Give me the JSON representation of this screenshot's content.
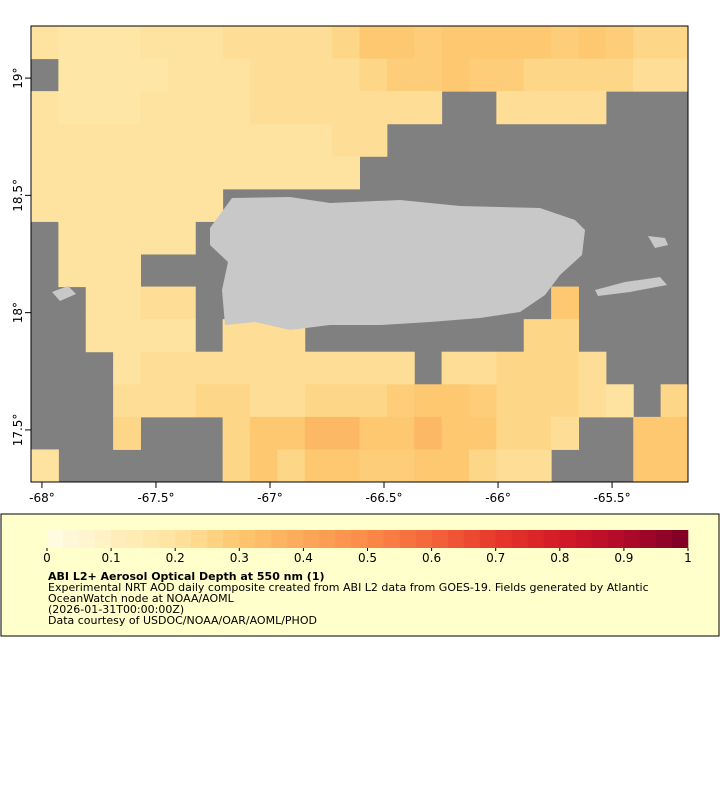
{
  "map": {
    "lon_range": [
      -68.048,
      -65.167
    ],
    "lat_range": [
      17.278,
      19.222
    ],
    "xticks": [
      {
        "value": -68,
        "label": "-68°"
      },
      {
        "value": -67.5,
        "label": "-67.5°"
      },
      {
        "value": -67,
        "label": "-67°"
      },
      {
        "value": -66.5,
        "label": "-66.5°"
      },
      {
        "value": -66,
        "label": "-66°"
      },
      {
        "value": -65.5,
        "label": "-65.5°"
      }
    ],
    "yticks": [
      {
        "value": 17.5,
        "label": "17.5°"
      },
      {
        "value": 18,
        "label": "18°"
      },
      {
        "value": 18.5,
        "label": "18.5°"
      },
      {
        "value": 19,
        "label": "19°"
      }
    ],
    "aod": {
      "values": [
        [
          0.2,
          0.18,
          0.18,
          0.18,
          0.2,
          0.2,
          0.2,
          0.22,
          0.22,
          0.22,
          0.22,
          0.25,
          0.3,
          0.3,
          0.28,
          0.3,
          0.3,
          0.3,
          0.3,
          0.28,
          0.3,
          0.28,
          0.25,
          0.25
        ],
        [
          null,
          0.18,
          0.18,
          0.18,
          0.18,
          0.2,
          0.2,
          0.2,
          0.22,
          0.22,
          0.22,
          0.22,
          0.25,
          0.28,
          0.28,
          0.3,
          0.28,
          0.28,
          0.25,
          0.25,
          0.25,
          0.25,
          0.22,
          0.22
        ],
        [
          0.2,
          0.18,
          0.18,
          0.18,
          0.2,
          0.2,
          0.2,
          0.2,
          0.22,
          0.22,
          0.22,
          0.22,
          0.22,
          0.22,
          0.22,
          null,
          null,
          0.22,
          0.22,
          0.22,
          0.22,
          null,
          null,
          null
        ],
        [
          0.2,
          0.2,
          0.2,
          0.2,
          0.2,
          0.2,
          0.2,
          0.2,
          0.2,
          0.2,
          0.2,
          0.22,
          0.22,
          null,
          null,
          null,
          null,
          null,
          null,
          null,
          null,
          null,
          null,
          null
        ],
        [
          0.2,
          0.2,
          0.2,
          0.2,
          0.2,
          0.2,
          0.2,
          0.2,
          0.2,
          0.2,
          0.2,
          0.2,
          null,
          null,
          null,
          null,
          null,
          null,
          null,
          null,
          null,
          null,
          null,
          null
        ],
        [
          0.2,
          0.2,
          0.2,
          0.2,
          0.2,
          0.2,
          0.2,
          null,
          null,
          null,
          null,
          null,
          null,
          null,
          null,
          null,
          null,
          null,
          null,
          null,
          null,
          null,
          null,
          null
        ],
        [
          null,
          0.2,
          0.2,
          0.2,
          0.2,
          0.2,
          null,
          null,
          null,
          null,
          null,
          null,
          null,
          null,
          null,
          null,
          null,
          null,
          null,
          null,
          null,
          null,
          null,
          null
        ],
        [
          null,
          0.2,
          0.2,
          0.2,
          null,
          null,
          null,
          null,
          null,
          null,
          null,
          null,
          null,
          null,
          null,
          null,
          null,
          null,
          null,
          null,
          null,
          null,
          null,
          null
        ],
        [
          null,
          null,
          0.2,
          0.2,
          0.22,
          0.22,
          null,
          null,
          null,
          null,
          null,
          null,
          null,
          null,
          null,
          null,
          null,
          null,
          null,
          0.3,
          null,
          null,
          null,
          null
        ],
        [
          null,
          null,
          0.2,
          0.2,
          0.2,
          0.2,
          null,
          0.22,
          0.22,
          0.22,
          null,
          null,
          null,
          null,
          null,
          null,
          null,
          null,
          0.25,
          0.25,
          null,
          null,
          null,
          null
        ],
        [
          null,
          null,
          null,
          0.2,
          0.22,
          0.22,
          0.22,
          0.22,
          0.22,
          0.22,
          0.22,
          0.22,
          0.22,
          0.22,
          null,
          0.22,
          0.22,
          0.25,
          0.25,
          0.25,
          0.22,
          null,
          null,
          null
        ],
        [
          null,
          null,
          null,
          0.22,
          0.22,
          0.22,
          0.25,
          0.25,
          0.22,
          0.22,
          0.25,
          0.25,
          0.25,
          0.28,
          0.3,
          0.3,
          0.28,
          0.25,
          0.25,
          0.25,
          0.22,
          0.2,
          null,
          0.25
        ],
        [
          null,
          null,
          null,
          0.25,
          null,
          null,
          null,
          0.25,
          0.3,
          0.3,
          0.35,
          0.35,
          0.3,
          0.3,
          0.35,
          0.3,
          0.3,
          0.25,
          0.25,
          0.22,
          null,
          null,
          0.3,
          0.3
        ],
        [
          0.2,
          null,
          null,
          null,
          null,
          null,
          null,
          0.25,
          0.3,
          0.25,
          0.3,
          0.3,
          0.28,
          0.28,
          0.3,
          0.3,
          0.25,
          0.22,
          0.22,
          null,
          null,
          null,
          0.3,
          0.3
        ]
      ]
    },
    "colorbar": {
      "range": [
        0,
        1
      ],
      "ticks": [
        0,
        0.1,
        0.2,
        0.3,
        0.4,
        0.5,
        0.6,
        0.7,
        0.8,
        0.9,
        1
      ],
      "colors": [
        "#fffde6",
        "#fff0c0",
        "#fee3a0",
        "#fdc870",
        "#fca85a",
        "#fa8a48",
        "#f4653a",
        "#e6382b",
        "#d41a28",
        "#b00a2a",
        "#7d0025"
      ]
    },
    "legend": {
      "title": "ABI L2+ Aerosol Optical Depth at 550 nm (1)",
      "lines": [
        "Experimental NRT AOD daily composite created from ABI L2 data from GOES-19. Fields generated by Atlantic",
        "OceanWatch node at NOAA/AOML",
        "(2026-01-31T00:00:00Z)",
        "Data courtesy of USDOC/NOAA/OAR/AOML/PHOD"
      ]
    }
  }
}
